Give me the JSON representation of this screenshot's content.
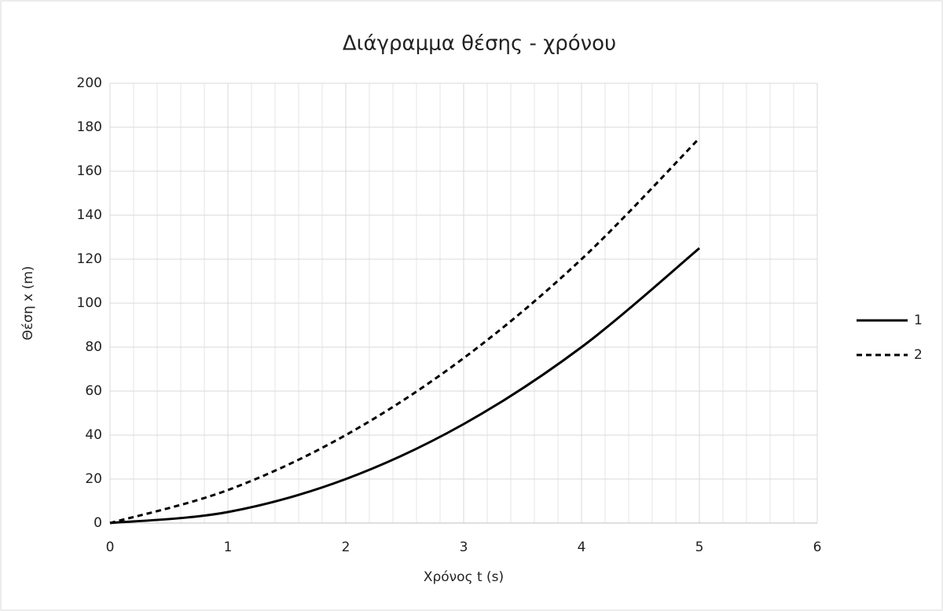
{
  "chart_data": {
    "type": "line",
    "title": "Διάγραμμα θέσης - χρόνου",
    "x_label": "Χρόνος t (s)",
    "y_label": "Θέση x (m)",
    "x": [
      0,
      1,
      2,
      3,
      4,
      5
    ],
    "series": [
      {
        "name": "1",
        "color": "#000000",
        "dash": "solid",
        "values": [
          0,
          5,
          20,
          45,
          80,
          125
        ]
      },
      {
        "name": "2",
        "color": "#000000",
        "dash": "dashed",
        "values": [
          0,
          15,
          40,
          75,
          120,
          175
        ]
      }
    ],
    "xlim": [
      0,
      6
    ],
    "xticks": [
      0,
      1,
      2,
      3,
      4,
      5,
      6
    ],
    "ylim": [
      0,
      200
    ],
    "yticks": [
      0,
      20,
      40,
      60,
      80,
      100,
      120,
      140,
      160,
      180,
      200
    ],
    "grid": true,
    "minor_grid": true,
    "legend": "right"
  }
}
